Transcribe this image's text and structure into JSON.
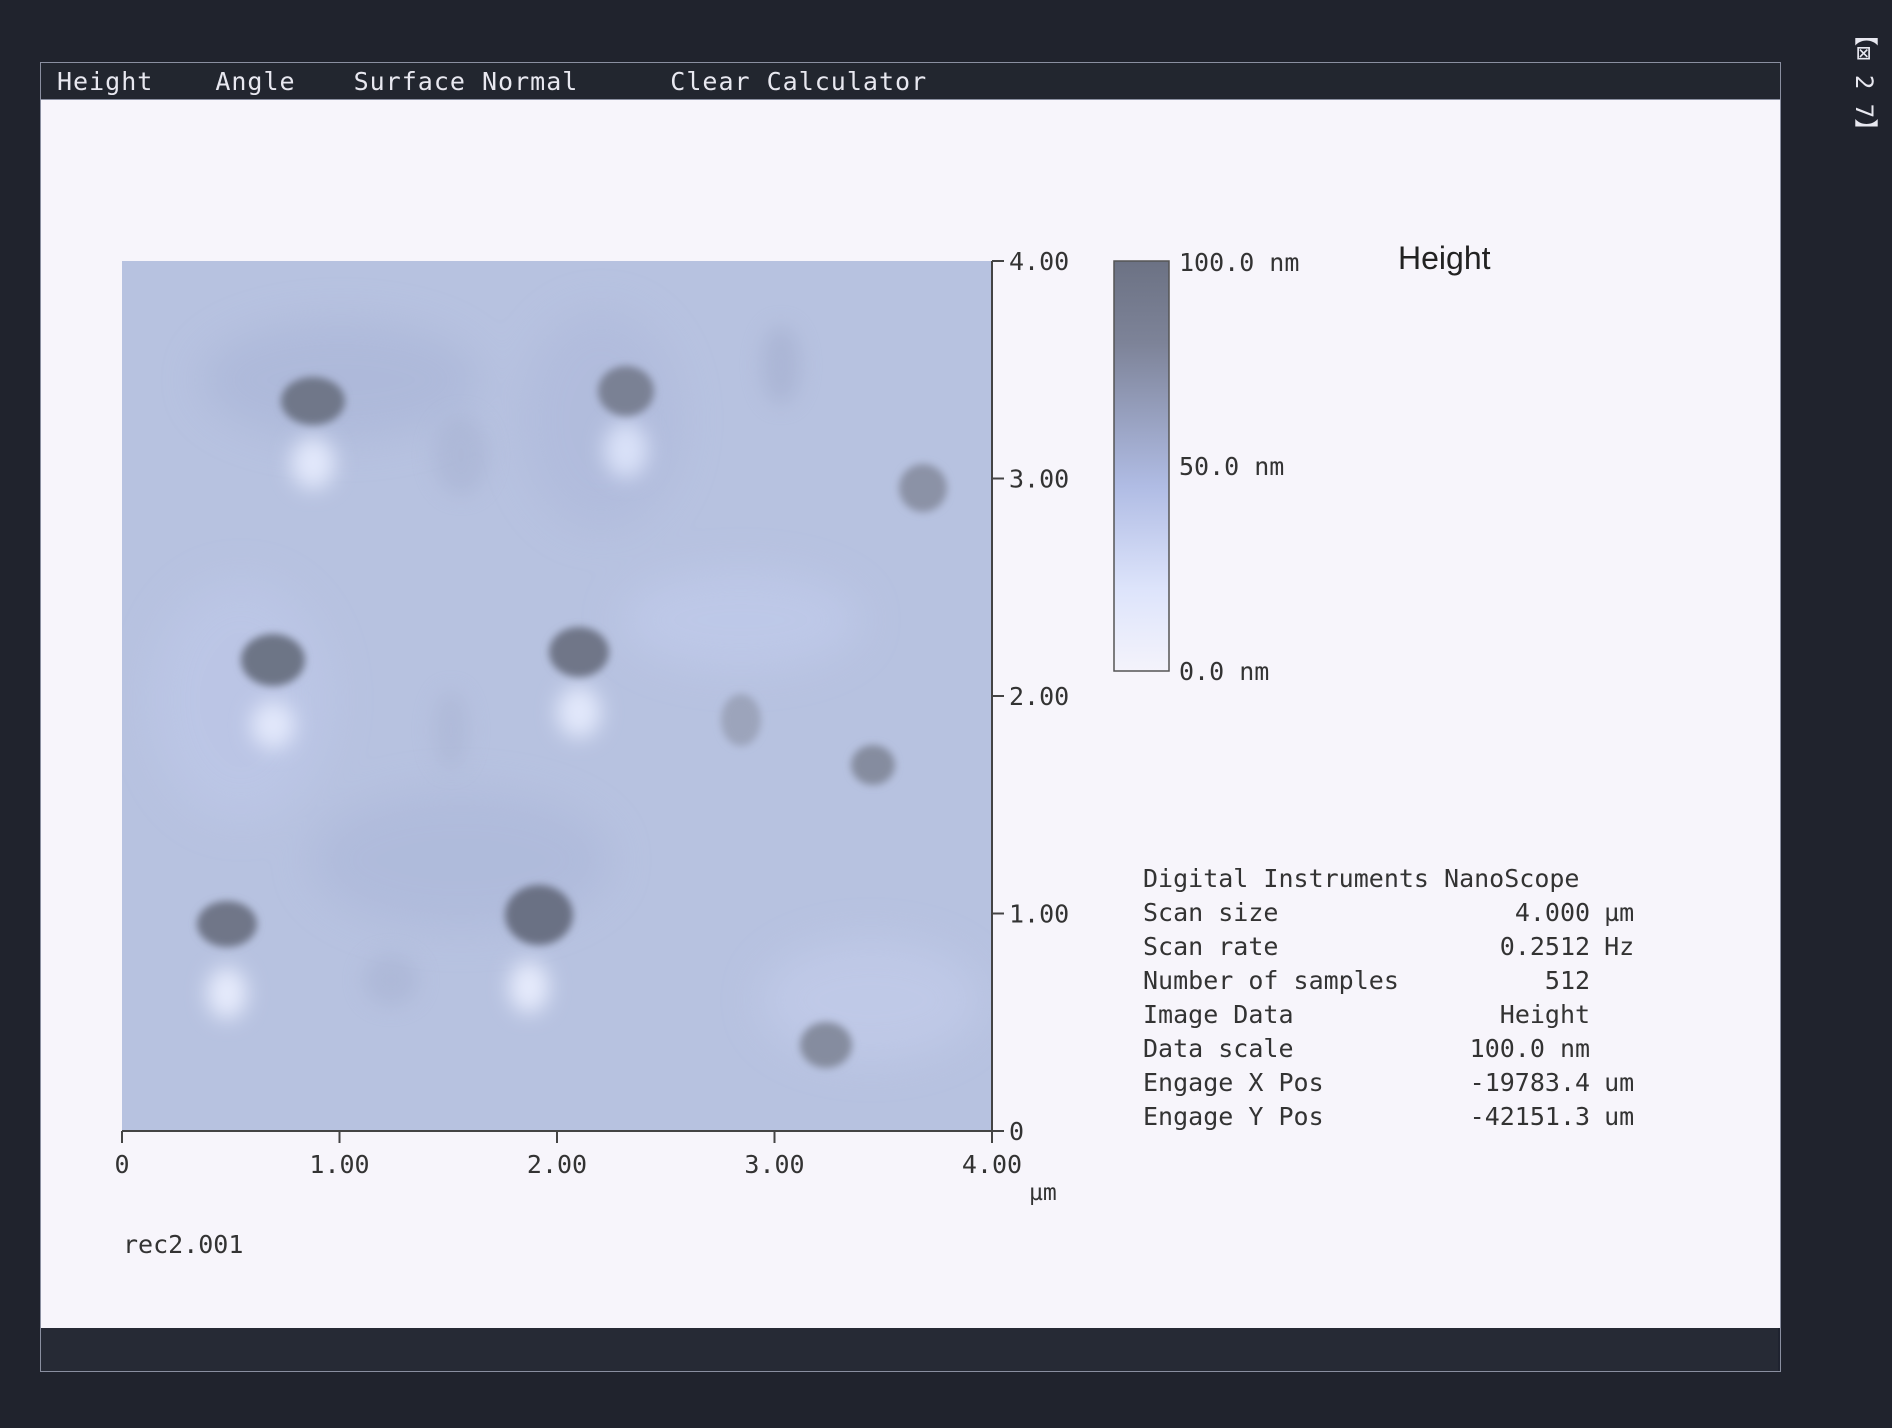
{
  "menu": {
    "items": [
      {
        "label": "Height"
      },
      {
        "label": "Angle"
      },
      {
        "label": "Surface Normal"
      },
      {
        "label": "Clear Calculator"
      }
    ]
  },
  "tray": {
    "text": "【⊠ 2 7】"
  },
  "image": {
    "title": "Height",
    "filename": "rec2.001",
    "x_unit": "µm",
    "x_ticks": [
      "0",
      "1.00",
      "2.00",
      "3.00",
      "4.00"
    ],
    "y_ticks": [
      "0",
      "1.00",
      "2.00",
      "3.00",
      "4.00"
    ],
    "colorbar_labels": [
      "100.0 nm",
      "50.0 nm",
      "0.0 nm"
    ],
    "colors": {
      "high": "#6c7284",
      "mid": "#b0bce4",
      "low": "#f4f3fb",
      "surface": "#b7c2e0"
    }
  },
  "info": {
    "header": "Digital Instruments NanoScope",
    "rows": [
      {
        "key": "Scan size",
        "value": "4.000",
        "unit": "µm"
      },
      {
        "key": "Scan rate",
        "value": "0.2512",
        "unit": "Hz"
      },
      {
        "key": "Number of samples",
        "value": "512",
        "unit": ""
      },
      {
        "key": "Image Data",
        "value": "Height",
        "unit": ""
      },
      {
        "key": "Data scale",
        "value": "100.0 nm",
        "unit": ""
      },
      {
        "key": "Engage X Pos",
        "value": "-19783.4",
        "unit": "um"
      },
      {
        "key": "Engage Y Pos",
        "value": "-42151.3",
        "unit": "um"
      }
    ]
  }
}
